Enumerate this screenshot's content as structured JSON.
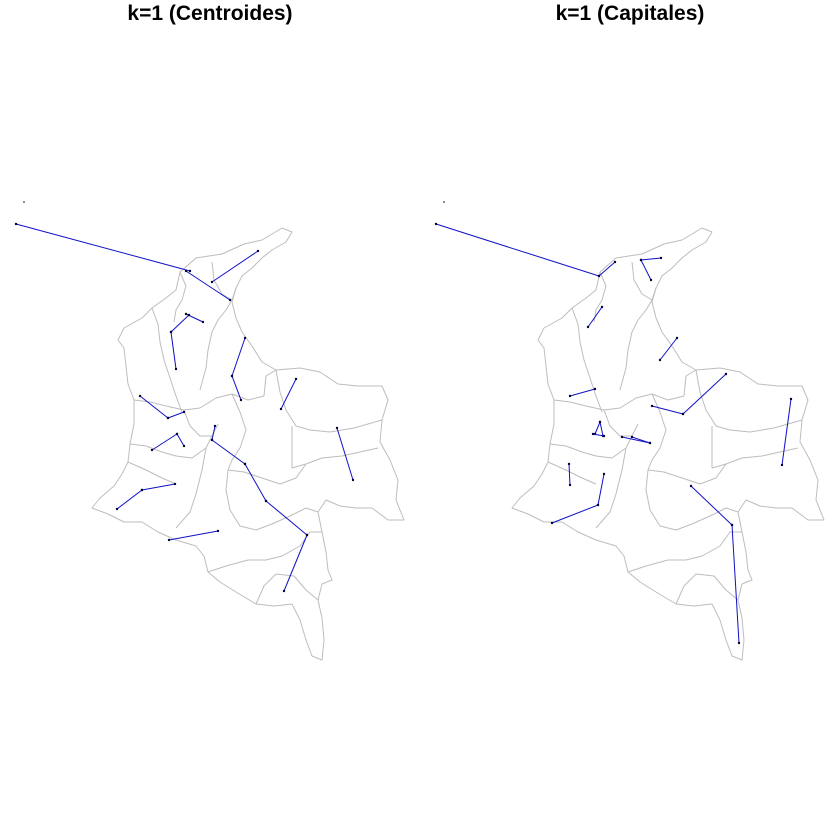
{
  "panels": [
    {
      "id": "centroides",
      "title": "k=1 (Centroides)",
      "links": [
        [
          16,
          224,
          190,
          271
        ],
        [
          258,
          251,
          212,
          282
        ],
        [
          186,
          271,
          230,
          300
        ],
        [
          186,
          314,
          203,
          322
        ],
        [
          171,
          332,
          189,
          315
        ],
        [
          171,
          332,
          176,
          369
        ],
        [
          245,
          338,
          232,
          376
        ],
        [
          232,
          376,
          241,
          400
        ],
        [
          296,
          379,
          281,
          409
        ],
        [
          140,
          396,
          168,
          418
        ],
        [
          168,
          418,
          184,
          412
        ],
        [
          177,
          434,
          152,
          450
        ],
        [
          177,
          434,
          184,
          446
        ],
        [
          215,
          426,
          212,
          440
        ],
        [
          212,
          440,
          245,
          464
        ],
        [
          245,
          464,
          266,
          501
        ],
        [
          266,
          501,
          307,
          535
        ],
        [
          307,
          535,
          284,
          591
        ],
        [
          337,
          428,
          353,
          480
        ],
        [
          117,
          509,
          142,
          490
        ],
        [
          142,
          490,
          175,
          484
        ],
        [
          169,
          540,
          218,
          531
        ]
      ]
    },
    {
      "id": "capitales",
      "title": "k=1 (Capitales)",
      "links": [
        [
          16,
          224,
          179,
          276
        ],
        [
          179,
          276,
          195,
          262
        ],
        [
          221,
          260,
          241,
          258
        ],
        [
          221,
          260,
          231,
          280
        ],
        [
          168,
          327,
          182,
          307
        ],
        [
          150,
          396,
          175,
          389
        ],
        [
          180,
          422,
          175,
          434
        ],
        [
          180,
          422,
          183,
          436
        ],
        [
          173,
          434,
          184,
          436
        ],
        [
          202,
          437,
          230,
          443
        ],
        [
          230,
          443,
          212,
          437
        ],
        [
          240,
          360,
          257,
          338
        ],
        [
          232,
          406,
          263,
          414
        ],
        [
          263,
          414,
          306,
          374
        ],
        [
          149,
          464,
          150,
          485
        ],
        [
          132,
          523,
          178,
          505
        ],
        [
          178,
          505,
          184,
          474
        ],
        [
          271,
          486,
          312,
          525
        ],
        [
          312,
          525,
          319,
          643
        ],
        [
          371,
          399,
          362,
          465
        ]
      ]
    }
  ]
}
